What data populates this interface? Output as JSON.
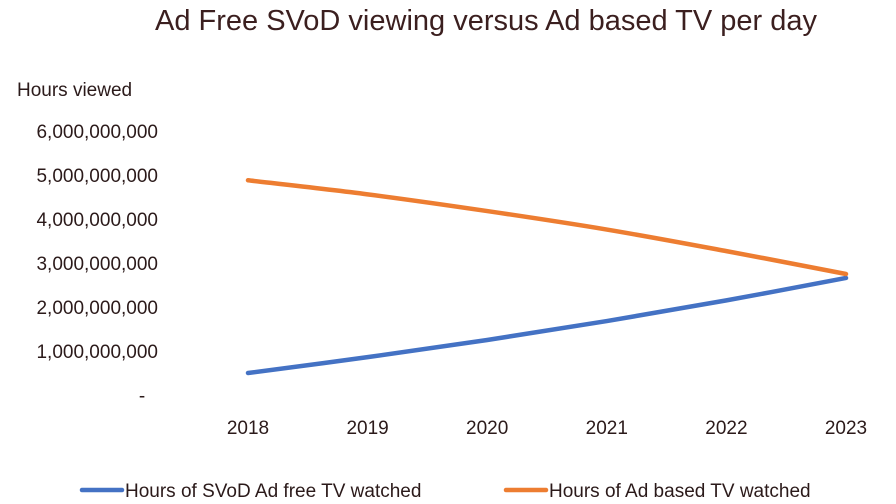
{
  "chart_data": {
    "type": "line",
    "title": "Ad Free SVoD viewing versus Ad based TV per day",
    "ylabel": "Hours viewed",
    "xlabel": "",
    "categories": [
      "2018",
      "2019",
      "2020",
      "2021",
      "2022",
      "2023"
    ],
    "ylim": [
      0,
      6000000000
    ],
    "y_ticks": [
      0,
      1000000000,
      2000000000,
      3000000000,
      4000000000,
      5000000000,
      6000000000
    ],
    "y_tick_labels": [
      "-",
      "1,000,000,000",
      "2,000,000,000",
      "3,000,000,000",
      "4,000,000,000",
      "5,000,000,000",
      "6,000,000,000"
    ],
    "grid": false,
    "legend_position": "bottom",
    "series": [
      {
        "name": "Hours of SVoD Ad free TV watched",
        "color": "#4472c4",
        "values": [
          500000000,
          860000000,
          1250000000,
          1680000000,
          2150000000,
          2660000000
        ]
      },
      {
        "name": "Hours of Ad based TV watched",
        "color": "#ed7d31",
        "values": [
          4880000000,
          4560000000,
          4180000000,
          3760000000,
          3270000000,
          2750000000
        ]
      }
    ]
  }
}
